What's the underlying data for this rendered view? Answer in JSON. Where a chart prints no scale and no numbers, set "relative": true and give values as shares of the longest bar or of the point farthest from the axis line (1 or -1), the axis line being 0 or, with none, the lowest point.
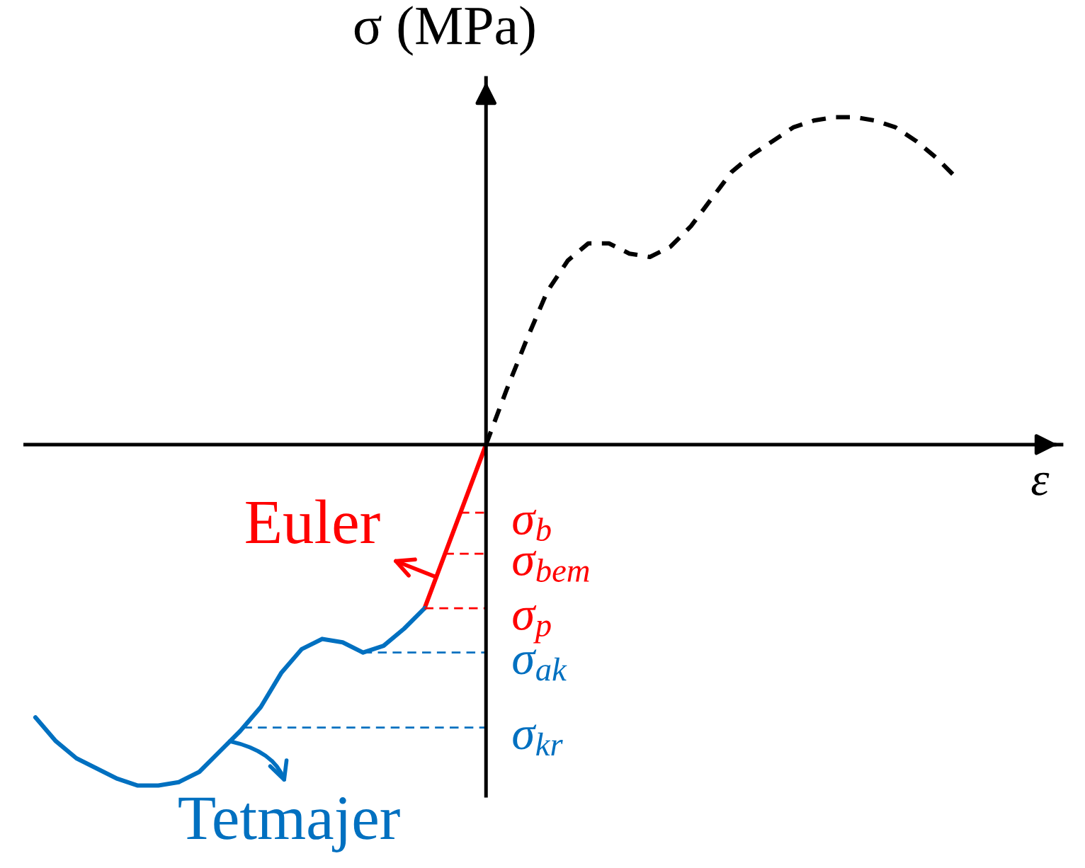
{
  "chart_data": {
    "type": "line",
    "relative": true,
    "xlabel": "ε",
    "ylabel": "σ (MPa)",
    "categories": [
      null,
      null,
      null,
      null,
      null,
      null,
      null,
      null,
      null,
      null,
      null,
      null,
      null,
      null,
      null,
      null,
      null,
      null,
      null,
      null,
      null,
      null,
      null,
      null,
      null,
      null,
      null,
      null,
      null,
      null,
      null,
      null,
      null,
      null,
      null,
      null,
      null,
      null,
      null,
      null,
      null,
      null,
      null,
      null,
      null,
      null
    ],
    "series": [
      {
        "color": "#000000",
        "line_style": "dashed",
        "values": [
          null,
          null,
          null,
          null,
          null,
          null,
          null,
          null,
          null,
          null,
          null,
          null,
          null,
          null,
          null,
          null,
          null,
          null,
          null,
          null,
          null,
          null,
          0,
          0.16,
          0.31,
          0.45,
          0.54,
          0.59,
          0.59,
          0.56,
          0.55,
          0.58,
          0.64,
          0.72,
          0.8,
          0.85,
          0.89,
          0.93,
          0.95,
          0.96,
          0.96,
          0.95,
          0.93,
          0.89,
          0.84,
          0.78
        ]
      },
      {
        "name": "Euler",
        "color": "#ff0000",
        "line_style": "solid",
        "values": [
          null,
          null,
          null,
          null,
          null,
          null,
          null,
          null,
          null,
          null,
          null,
          null,
          null,
          null,
          null,
          null,
          null,
          null,
          null,
          -0.48,
          -0.32,
          -0.16,
          0,
          null,
          null,
          null,
          null,
          null,
          null,
          null,
          null,
          null,
          null,
          null,
          null,
          null,
          null,
          null,
          null,
          null,
          null,
          null,
          null,
          null,
          null,
          null
        ]
      },
      {
        "name": "Tetmajer",
        "color": "#0070c0",
        "line_style": "solid",
        "values": [
          -0.8,
          -0.87,
          -0.92,
          -0.95,
          -0.98,
          -1.0,
          -1.0,
          -0.99,
          -0.96,
          -0.9,
          -0.84,
          -0.77,
          -0.67,
          -0.6,
          -0.57,
          -0.58,
          -0.61,
          -0.59,
          -0.54,
          -0.48,
          null,
          null,
          null,
          null,
          null,
          null,
          null,
          null,
          null,
          null,
          null,
          null,
          null,
          null,
          null,
          null,
          null,
          null,
          null,
          null,
          null,
          null,
          null,
          null,
          null,
          null
        ]
      }
    ],
    "ref_lines": [
      {
        "axis": "y",
        "value": -0.2,
        "label": "σ$_{b}$",
        "color": "#ff0000",
        "line_style": "dashed"
      },
      {
        "axis": "y",
        "value": -0.32,
        "label": "σ$_{bem}$",
        "color": "#ff0000",
        "line_style": "dashed"
      },
      {
        "axis": "y",
        "value": -0.48,
        "label": "σ$_{p}$",
        "color": "#ff0000",
        "line_style": "dashed"
      },
      {
        "axis": "y",
        "value": -0.61,
        "label": "σ$_{ak}$",
        "color": "#0070c0",
        "line_style": "dashed"
      },
      {
        "axis": "y",
        "value": -0.83,
        "label": "σ$_{kr}$",
        "color": "#0070c0",
        "line_style": "dashed"
      }
    ]
  }
}
